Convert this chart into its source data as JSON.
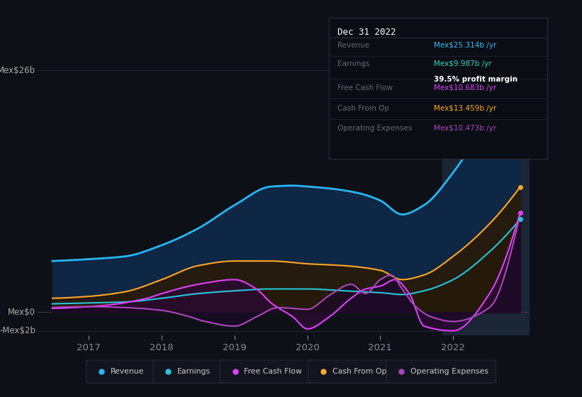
{
  "bg_color": "#0d1117",
  "title_box": {
    "date": "Dec 31 2022",
    "rows": [
      {
        "label": "Revenue",
        "value": "Mex$25.314b /yr",
        "value_color": "#38bdf8"
      },
      {
        "label": "Earnings",
        "value": "Mex$9.987b /yr",
        "value_color": "#2dd4bf",
        "sub": "39.5% profit margin"
      },
      {
        "label": "Free Cash Flow",
        "value": "Mex$10.683b /yr",
        "value_color": "#e040fb"
      },
      {
        "label": "Cash From Op",
        "value": "Mex$13.459b /yr",
        "value_color": "#ffa726"
      },
      {
        "label": "Operating Expenses",
        "value": "Mex$10.473b /yr",
        "value_color": "#ab47bc"
      }
    ]
  },
  "y_label_top": "Mex$26b",
  "y_label_mid": "Mex$0",
  "y_label_bot": "-Mex$2b",
  "x_ticks": [
    "2017",
    "2018",
    "2019",
    "2020",
    "2021",
    "2022"
  ],
  "ylim": [
    -2.5,
    28
  ],
  "legend": [
    {
      "label": "Revenue",
      "color": "#29b6f6"
    },
    {
      "label": "Earnings",
      "color": "#26c6da"
    },
    {
      "label": "Free Cash Flow",
      "color": "#e040fb"
    },
    {
      "label": "Cash From Op",
      "color": "#ffa726"
    },
    {
      "label": "Operating Expenses",
      "color": "#ab47bc"
    }
  ],
  "revenue_color": "#29b6f6",
  "revenue_fill": "#0d2744",
  "earnings_color": "#26c6da",
  "earnings_fill": "#0a2020",
  "fcf_color": "#e040fb",
  "fcf_fill": "#2a0a30",
  "cfo_color": "#ffa726",
  "cfo_fill": "#2a1a05",
  "opex_color": "#ab47bc",
  "opex_fill": "#1a0a25",
  "highlight_fill": "#1a2535"
}
